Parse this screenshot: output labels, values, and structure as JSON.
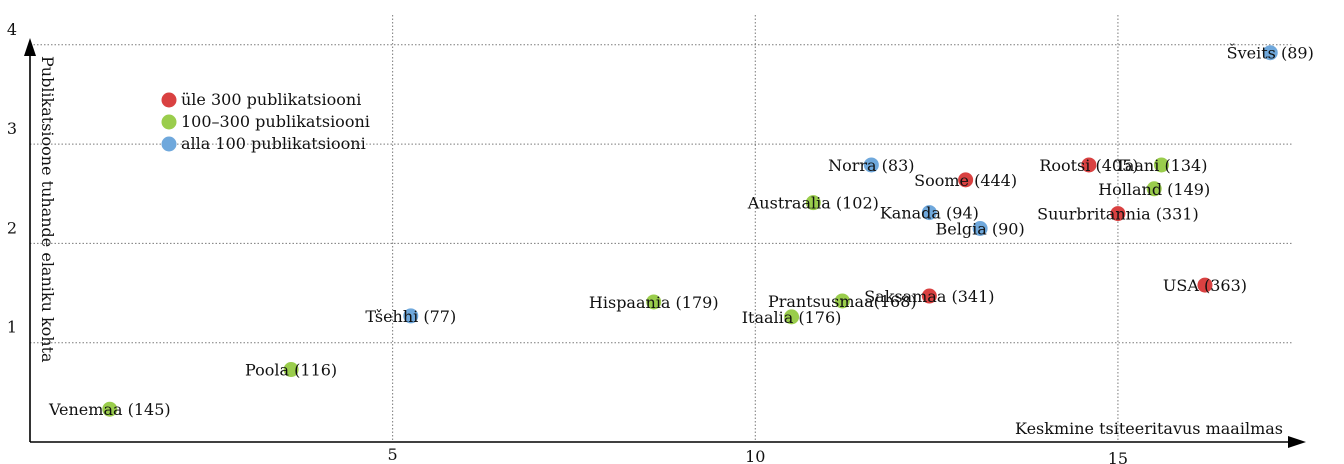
{
  "chart_data": {
    "type": "scatter",
    "xlabel": "Keskmine tsiteeritavus maailmas",
    "ylabel": "Publikatsioone tuhande elaniku kohta",
    "xlim": [
      0,
      17.4
    ],
    "ylim": [
      0,
      4.3
    ],
    "x_ticks": [
      5,
      10,
      15
    ],
    "y_ticks": [
      1,
      2,
      3,
      4
    ],
    "grid": true,
    "legend_position": "top-left",
    "colors": {
      "red": "#d94141",
      "green": "#9acd4c",
      "blue": "#6fa8dc"
    },
    "legend": [
      {
        "group": "red",
        "label": "üle 300 publikatsiooni"
      },
      {
        "group": "green",
        "label": "100–300 publikatsiooni"
      },
      {
        "group": "blue",
        "label": "alla 100 publikatsiooni"
      }
    ],
    "points": [
      {
        "label": "Venemaa (145)",
        "x": 1.1,
        "y": 0.33,
        "group": "green"
      },
      {
        "label": "Poola (116)",
        "x": 3.6,
        "y": 0.73,
        "group": "green"
      },
      {
        "label": "Tšehhi (77)",
        "x": 5.25,
        "y": 1.27,
        "group": "blue"
      },
      {
        "label": "Hispaania (179)",
        "x": 8.6,
        "y": 1.41,
        "group": "green"
      },
      {
        "label": "Itaalia (176)",
        "x": 10.5,
        "y": 1.26,
        "group": "green"
      },
      {
        "label": "Prantsusmaa(168)",
        "x": 11.2,
        "y": 1.42,
        "group": "green"
      },
      {
        "label": "Saksamaa (341)",
        "x": 12.4,
        "y": 1.47,
        "group": "red"
      },
      {
        "label": "USA (363)",
        "x": 16.2,
        "y": 1.58,
        "group": "red"
      },
      {
        "label": "Austraalia (102)",
        "x": 10.8,
        "y": 2.41,
        "group": "green"
      },
      {
        "label": "Norra (83)",
        "x": 11.6,
        "y": 2.79,
        "group": "blue"
      },
      {
        "label": "Soome (444)",
        "x": 12.9,
        "y": 2.64,
        "group": "red"
      },
      {
        "label": "Kanada (94)",
        "x": 12.4,
        "y": 2.31,
        "group": "blue"
      },
      {
        "label": "Belgia (90)",
        "x": 13.1,
        "y": 2.15,
        "group": "blue"
      },
      {
        "label": "Rootsi (405)",
        "x": 14.6,
        "y": 2.79,
        "group": "red"
      },
      {
        "label": "Taani (134)",
        "x": 15.6,
        "y": 2.79,
        "group": "green"
      },
      {
        "label": "Holland (149)",
        "x": 15.5,
        "y": 2.55,
        "group": "green"
      },
      {
        "label": "Suurbritannia (331)",
        "x": 15.0,
        "y": 2.3,
        "group": "red"
      },
      {
        "label": "Šveits (89)",
        "x": 17.1,
        "y": 3.92,
        "group": "blue"
      }
    ]
  }
}
